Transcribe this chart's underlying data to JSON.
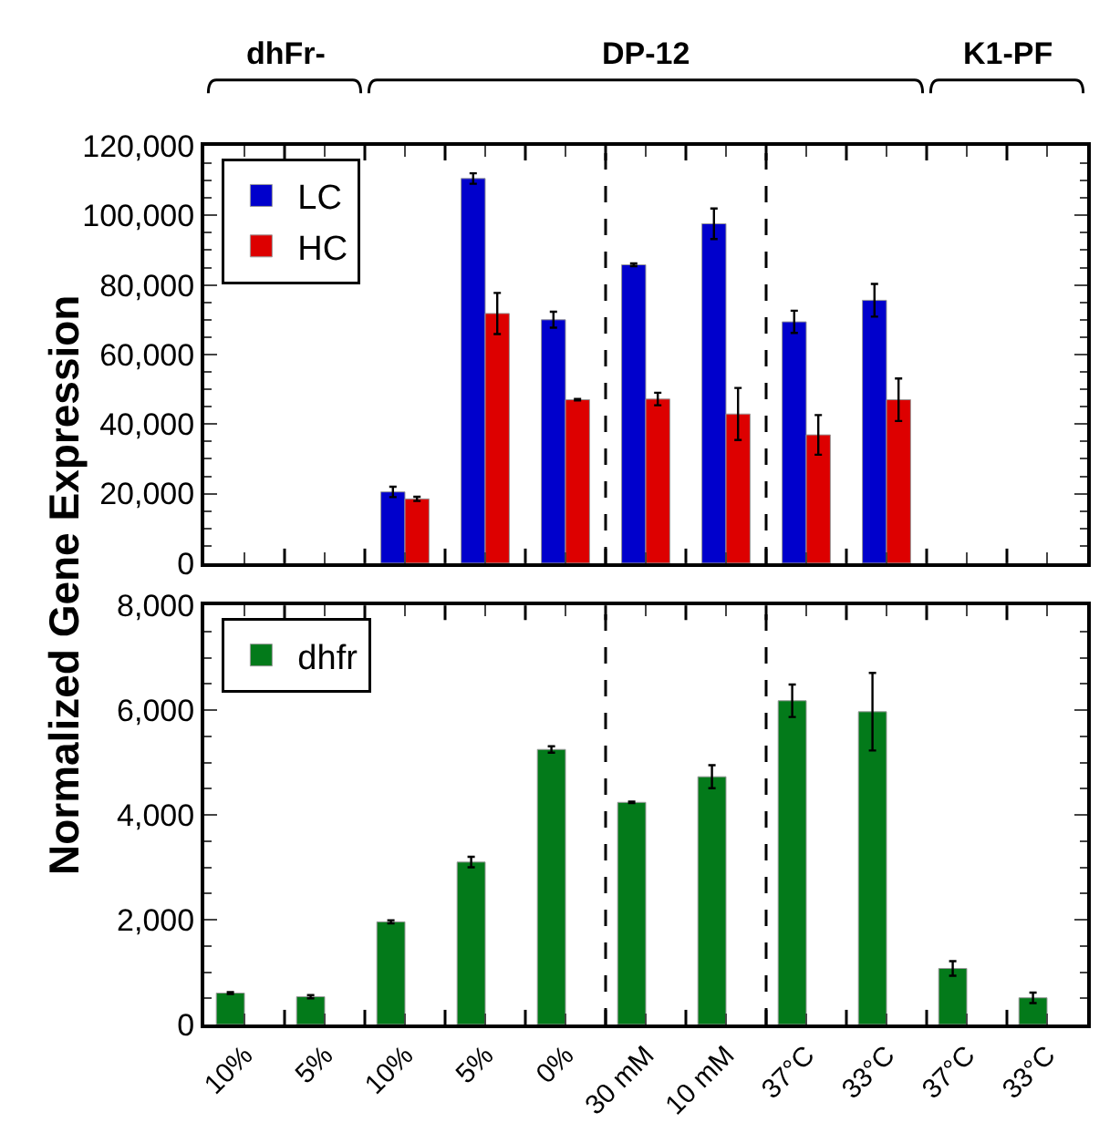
{
  "chart_data": [
    {
      "type": "bar",
      "ylabel": "Normalized Gene Expression",
      "annotations": [
        "dhFr-",
        "DP-12",
        "K1-PF"
      ],
      "categories": [
        "10%",
        "5%",
        "10%",
        "5%",
        "0%",
        "30 mM",
        "10 mM",
        "37°C",
        "33°C",
        "37°C",
        "33°C"
      ],
      "series": [
        {
          "name": "LC",
          "color": "#0000cc",
          "values": [
            null,
            null,
            20500,
            110600,
            70000,
            85800,
            97600,
            69400,
            75600,
            null,
            null
          ],
          "errors": [
            null,
            null,
            1500,
            1500,
            2300,
            400,
            4400,
            3200,
            4700,
            null,
            null
          ]
        },
        {
          "name": "HC",
          "color": "#dd0000",
          "values": [
            null,
            null,
            18500,
            71800,
            47000,
            47200,
            42900,
            36900,
            47000,
            null,
            null
          ],
          "errors": [
            null,
            null,
            600,
            5900,
            200,
            1800,
            7500,
            5700,
            6100,
            null,
            null
          ]
        }
      ],
      "ylim": [
        0,
        120000
      ],
      "yticks": [
        0,
        {
          "value": 20000,
          "label": "20,000"
        },
        {
          "value": 40000,
          "label": "40,000"
        },
        {
          "value": 60000,
          "label": "60,000"
        },
        {
          "value": 80000,
          "label": "80,000"
        },
        {
          "value": 100000,
          "label": "100,000"
        },
        {
          "value": 120000,
          "label": "120,000"
        }
      ],
      "legend": "top left",
      "tick_labels": "y"
    },
    {
      "type": "bar",
      "categories": [
        "10%",
        "5%",
        "10%",
        "5%",
        "0%",
        "30 mM",
        "10 mM",
        "37°C",
        "33°C",
        "37°C",
        "33°C"
      ],
      "series": [
        {
          "name": "dhfr",
          "color": "#037a1a",
          "values": [
            600,
            530,
            1960,
            3100,
            5250,
            4240,
            4730,
            6180,
            5970,
            1070,
            510
          ],
          "errors": [
            20,
            30,
            30,
            100,
            60,
            15,
            220,
            310,
            740,
            140,
            100
          ]
        }
      ],
      "ylim": [
        0,
        8000
      ],
      "yticks": [
        0,
        {
          "value": 2000,
          "label": "2,000"
        },
        {
          "value": 4000,
          "label": "4,000"
        },
        {
          "value": 6000,
          "label": "6,000"
        },
        {
          "value": 8000,
          "label": "8,000"
        }
      ],
      "legend": "top left"
    }
  ]
}
